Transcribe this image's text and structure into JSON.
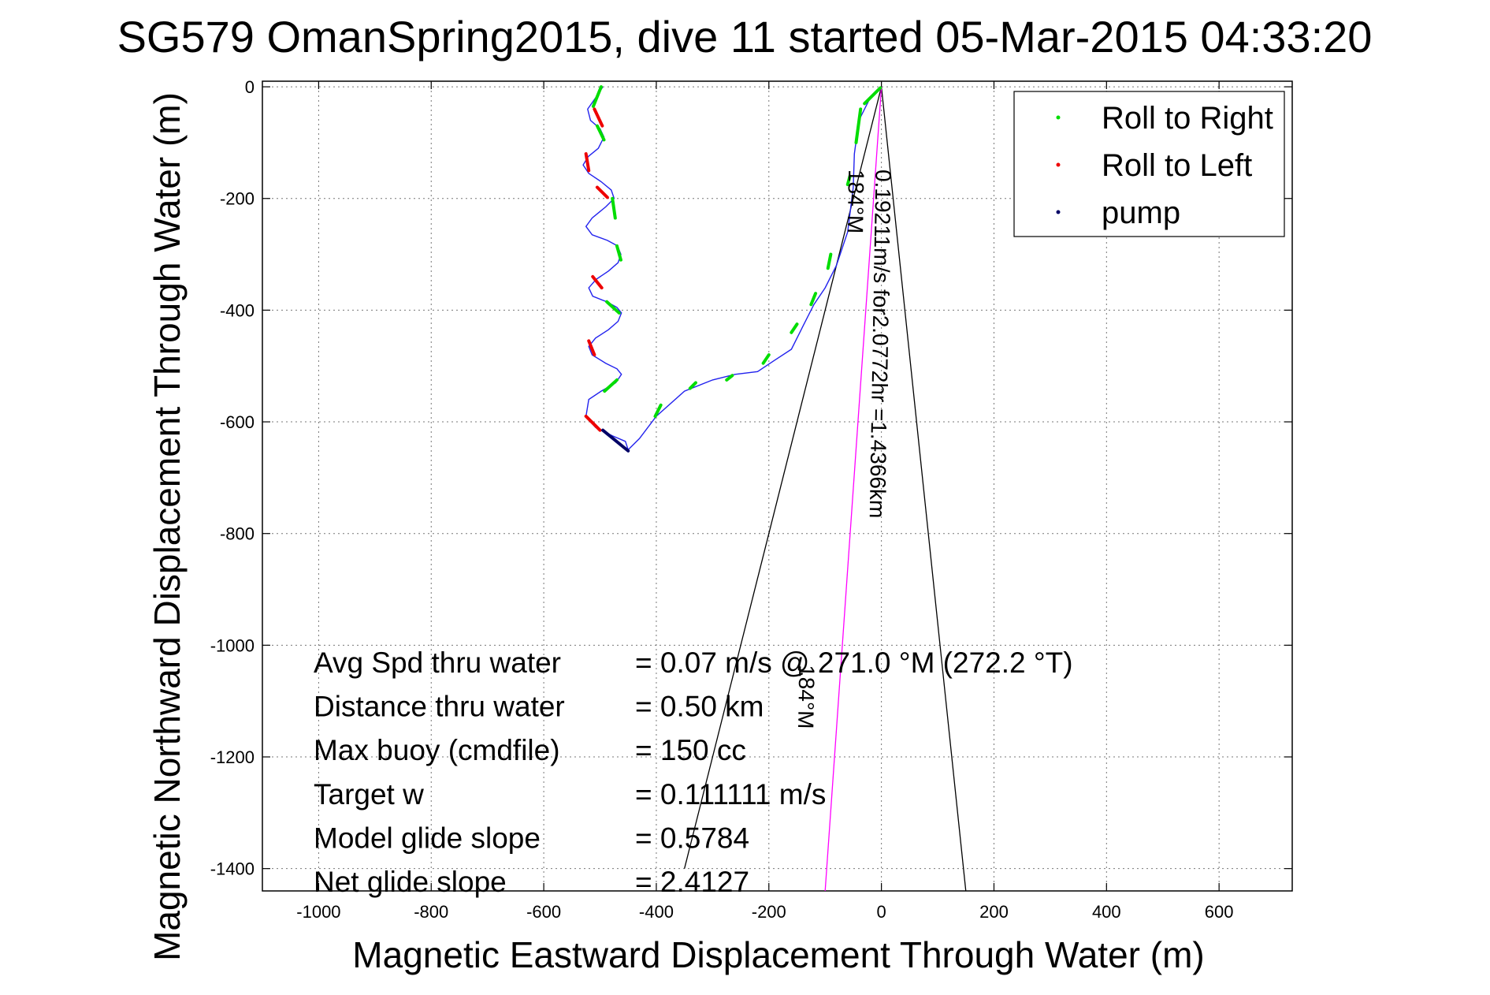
{
  "chart_data": {
    "type": "line",
    "title": "SG579 OmanSpring2015, dive 11 started 05-Mar-2015 04:33:20",
    "xlabel": "Magnetic Eastward Displacement Through Water (m)",
    "ylabel": "Magnetic Northward Displacement Through Water (m)",
    "xlim": [
      -1100,
      730
    ],
    "ylim": [
      -1440,
      10
    ],
    "xticks": [
      -1000,
      -800,
      -600,
      -400,
      -200,
      0,
      200,
      400,
      600
    ],
    "yticks": [
      0,
      -200,
      -400,
      -600,
      -800,
      -1000,
      -1200,
      -1400
    ],
    "grid": true,
    "legend": {
      "placement": "top-right",
      "entries": [
        {
          "label": "Roll to Right",
          "color": "#00dd00"
        },
        {
          "label": "Roll to Left",
          "color": "#ee0000"
        },
        {
          "label": "pump",
          "color": "#000066"
        }
      ]
    },
    "track": {
      "name": "glider track",
      "color": "#2222ee",
      "x": [
        -495,
        -508,
        -522,
        -517,
        -500,
        -493,
        -503,
        -521,
        -530,
        -520,
        -498,
        -480,
        -475,
        -490,
        -514,
        -525,
        -514,
        -487,
        -469,
        -463,
        -468,
        -485,
        -507,
        -520,
        -513,
        -488,
        -470,
        -462,
        -468,
        -485,
        -508,
        -520,
        -514,
        -490,
        -470,
        -462,
        -472,
        -498,
        -520,
        -525,
        -508,
        -478,
        -455,
        -450,
        -430,
        -400,
        -350,
        -300,
        -260,
        -220,
        -190,
        -160,
        -140,
        -120,
        -100,
        -80,
        -60,
        -50,
        -48,
        -40,
        -20,
        0
      ],
      "y": [
        0,
        -20,
        -40,
        -60,
        -75,
        -90,
        -110,
        -125,
        -140,
        -155,
        -170,
        -185,
        -200,
        -215,
        -235,
        -250,
        -265,
        -275,
        -285,
        -300,
        -315,
        -330,
        -345,
        -360,
        -375,
        -385,
        -395,
        -405,
        -420,
        -435,
        -450,
        -465,
        -480,
        -495,
        -505,
        -515,
        -530,
        -545,
        -560,
        -590,
        -610,
        -625,
        -635,
        -650,
        -630,
        -590,
        -545,
        -525,
        -515,
        -510,
        -490,
        -470,
        -430,
        -390,
        -360,
        -320,
        -260,
        -180,
        -120,
        -60,
        -20,
        0
      ]
    },
    "roll_right_segments": [
      [
        [
          -498,
          0
        ],
        [
          -512,
          -35
        ]
      ],
      [
        [
          -505,
          -70
        ],
        [
          -493,
          -95
        ]
      ],
      [
        [
          -478,
          -200
        ],
        [
          -473,
          -235
        ]
      ],
      [
        [
          -470,
          -285
        ],
        [
          -463,
          -310
        ]
      ],
      [
        [
          -488,
          -385
        ],
        [
          -466,
          -405
        ]
      ],
      [
        [
          -492,
          -545
        ],
        [
          -470,
          -525
        ]
      ],
      [
        [
          -402,
          -590
        ],
        [
          -392,
          -570
        ]
      ],
      [
        [
          -340,
          -540
        ],
        [
          -330,
          -530
        ]
      ],
      [
        [
          -275,
          -525
        ],
        [
          -265,
          -517
        ]
      ],
      [
        [
          -210,
          -495
        ],
        [
          -200,
          -480
        ]
      ],
      [
        [
          -160,
          -440
        ],
        [
          -150,
          -425
        ]
      ],
      [
        [
          -125,
          -390
        ],
        [
          -117,
          -370
        ]
      ],
      [
        [
          -95,
          -325
        ],
        [
          -90,
          -300
        ]
      ],
      [
        [
          -60,
          -175
        ],
        [
          -56,
          -160
        ]
      ],
      [
        [
          -45,
          -100
        ],
        [
          -37,
          -40
        ]
      ],
      [
        [
          -30,
          -30
        ],
        [
          -2,
          -2
        ]
      ]
    ],
    "roll_left_segments": [
      [
        [
          -510,
          -40
        ],
        [
          -496,
          -70
        ]
      ],
      [
        [
          -525,
          -120
        ],
        [
          -520,
          -150
        ]
      ],
      [
        [
          -505,
          -180
        ],
        [
          -487,
          -198
        ]
      ],
      [
        [
          -513,
          -340
        ],
        [
          -497,
          -360
        ]
      ],
      [
        [
          -520,
          -455
        ],
        [
          -510,
          -480
        ]
      ],
      [
        [
          -525,
          -590
        ],
        [
          -500,
          -615
        ]
      ]
    ],
    "pump_segments": [
      [
        [
          -495,
          -615
        ],
        [
          -450,
          -652
        ]
      ]
    ],
    "heading_lines": [
      {
        "color": "#000000",
        "x": [
          0,
          -350
        ],
        "y": [
          0,
          -1400
        ]
      },
      {
        "color": "#000000",
        "x": [
          0,
          150
        ],
        "y": [
          0,
          -1440
        ]
      },
      {
        "color": "#ff00ff",
        "x": [
          0,
          -100
        ],
        "y": [
          0,
          -1440
        ]
      }
    ],
    "annotations": [
      {
        "text": "0.19211m/s for2.0772hr =1.4366km",
        "x": -10,
        "y": -148,
        "rotation": 91
      },
      {
        "text": "184°M",
        "x": -58,
        "y": -148,
        "rotation": 91
      },
      {
        "text": "184°M",
        "x": -146,
        "y": -1035,
        "rotation": 91
      }
    ],
    "stats": [
      {
        "label": "Avg Spd thru water",
        "value": "=  0.07 m/s @ 271.0 °M (272.2 °T)"
      },
      {
        "label": "Distance thru water",
        "value": "=  0.50 km"
      },
      {
        "label": "Max buoy (cmdfile)",
        "value": "= 150 cc"
      },
      {
        "label": "Target w",
        "value": "= 0.111111 m/s"
      },
      {
        "label": "Model glide slope",
        "value": "= 0.5784"
      },
      {
        "label": "Net glide slope",
        "value": "= 2.4127"
      }
    ]
  }
}
